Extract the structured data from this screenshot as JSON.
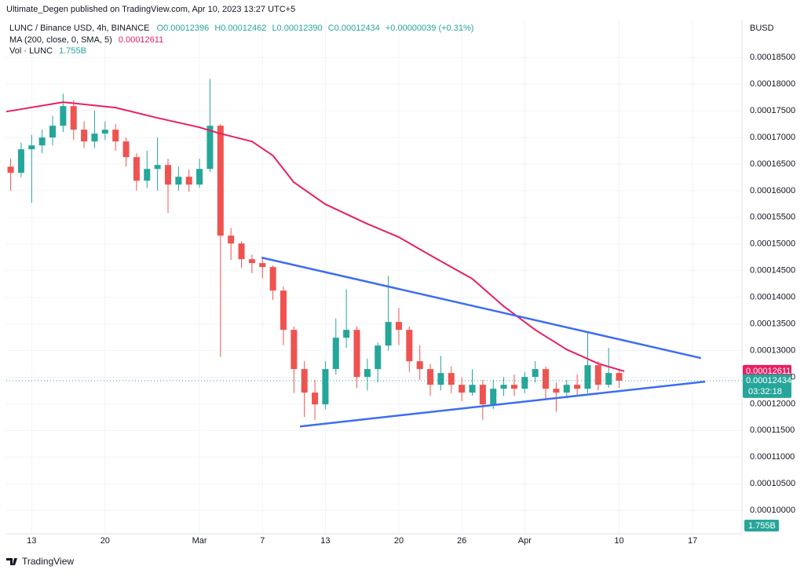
{
  "header": {
    "published": "Ultimate_Degen published on TradingView.com, Apr 10, 2023 13:27 UTC+5",
    "symbol": "LUNC / Binance USD, 4h, BINANCE",
    "o": "O0.00012396",
    "h": "H0.00012462",
    "l": "L0.00012390",
    "c": "C0.00012434",
    "change": "+0.00000039 (+0.31%)",
    "ma_name": "MA (200, close, 0, SMA, 5)",
    "ma_value": "0.00012611",
    "vol_name": "Vol · LUNC",
    "vol_value": "1.755B",
    "currency": "BUSD",
    "last_label": "0.00012434",
    "countdown": "03:32:18",
    "vol_tag": "1.755B",
    "brand": "TradingView"
  },
  "chart_data": {
    "type": "candlestick",
    "up_color": "#26a69a",
    "down_color": "#ef5350",
    "x": [
      "2023-02-11",
      "2023-02-12",
      "2023-02-13",
      "2023-02-14",
      "2023-02-15",
      "2023-02-16",
      "2023-02-17",
      "2023-02-18",
      "2023-02-19",
      "2023-02-20",
      "2023-02-21",
      "2023-02-22",
      "2023-02-23",
      "2023-02-24",
      "2023-02-25",
      "2023-02-26",
      "2023-02-27",
      "2023-02-28",
      "2023-03-01",
      "2023-03-02",
      "2023-03-03",
      "2023-03-04",
      "2023-03-05",
      "2023-03-06",
      "2023-03-07",
      "2023-03-08",
      "2023-03-09",
      "2023-03-10",
      "2023-03-11",
      "2023-03-12",
      "2023-03-13",
      "2023-03-14",
      "2023-03-15",
      "2023-03-16",
      "2023-03-17",
      "2023-03-18",
      "2023-03-19",
      "2023-03-20",
      "2023-03-21",
      "2023-03-22",
      "2023-03-23",
      "2023-03-24",
      "2023-03-25",
      "2023-03-26",
      "2023-03-27",
      "2023-03-28",
      "2023-03-29",
      "2023-03-30",
      "2023-03-31",
      "2023-04-01",
      "2023-04-02",
      "2023-04-03",
      "2023-04-04",
      "2023-04-05",
      "2023-04-06",
      "2023-04-07",
      "2023-04-08",
      "2023-04-09",
      "2023-04-10"
    ],
    "open": [
      0.0001645,
      0.00016335,
      0.00016777,
      0.0001685,
      0.00016998,
      0.00017219,
      0.00017587,
      0.00017145,
      0.00016924,
      0.00017071,
      0.00017145,
      0.00016924,
      0.00016629,
      0.00016187,
      0.00016408,
      0.00016482,
      0.00016114,
      0.00016261,
      0.00016114,
      0.00016408,
      0.00017219,
      0.00015156,
      0.00015009,
      0.00014714,
      0.00014641,
      0.00014567,
      0.00014125,
      0.00013388,
      0.00012652,
      0.0001221,
      0.00011989,
      0.00012652,
      0.00013241,
      0.00013388,
      0.00012504,
      0.00012652,
      0.00013094,
      0.00013536,
      0.00013388,
      0.00012799,
      0.00012652,
      0.00012357,
      0.00012578,
      0.00012357,
      0.0001221,
      0.00012357,
      0.00011989,
      0.00012283,
      0.00012357,
      0.00012283,
      0.00012504,
      0.00012652,
      0.00012283,
      0.0001221,
      0.00012357,
      0.00012283,
      0.00012725,
      0.00012357,
      0.00012578
    ],
    "high": [
      0.000166,
      0.000169,
      0.0001705,
      0.0001715,
      0.000174,
      0.0001782,
      0.000177,
      0.000173,
      0.000175,
      0.000173,
      0.0001725,
      0.00017,
      0.000167,
      0.0001675,
      0.00017,
      0.000166,
      0.0001645,
      0.000164,
      0.000166,
      0.000181,
      0.0001725,
      0.000153,
      0.0001505,
      0.000148,
      0.0001475,
      0.000146,
      0.000142,
      0.0001345,
      0.000128,
      0.0001245,
      0.000128,
      0.000136,
      0.0001415,
      0.0001345,
      0.0001285,
      0.0001315,
      0.000144,
      0.000138,
      0.0001345,
      0.000131,
      0.0001275,
      0.000129,
      0.000127,
      0.000125,
      0.0001265,
      0.0001245,
      0.0001245,
      0.000125,
      0.0001255,
      0.000126,
      0.000128,
      0.000127,
      0.000124,
      0.0001245,
      0.0001255,
      0.0001335,
      0.000128,
      0.0001305,
      0.0001265
    ],
    "low": [
      0.00016,
      0.0001625,
      0.0001577,
      0.000167,
      0.0001685,
      0.000171,
      0.0001695,
      0.000168,
      0.000168,
      0.0001695,
      0.0001675,
      0.0001645,
      0.00016,
      0.0001605,
      0.00016,
      0.0001558,
      0.00016,
      0.0001598,
      0.0001605,
      0.0001635,
      0.0001288,
      0.000147,
      0.0001455,
      0.0001445,
      0.0001435,
      0.0001395,
      0.000131,
      0.000122,
      0.0001175,
      0.000117,
      0.000119,
      0.0001255,
      0.0001305,
      0.000123,
      0.0001225,
      0.000124,
      0.00013,
      0.000131,
      0.000126,
      0.0001245,
      0.0001215,
      0.0001225,
      0.000122,
      0.0001205,
      0.0001215,
      0.000117,
      0.000119,
      0.0001215,
      0.0001215,
      0.000122,
      0.000124,
      0.000121,
      0.0001185,
      0.000121,
      0.0001215,
      0.000122,
      0.0001225,
      0.000123,
      0.000123
    ],
    "close": [
      0.00016335,
      0.00016777,
      0.0001685,
      0.00016998,
      0.00017219,
      0.00017587,
      0.00017145,
      0.00016924,
      0.00017071,
      0.00017145,
      0.00016924,
      0.00016629,
      0.00016187,
      0.00016408,
      0.00016482,
      0.00016114,
      0.00016261,
      0.00016114,
      0.00016408,
      0.00017219,
      0.00015156,
      0.00015009,
      0.00014714,
      0.00014641,
      0.00014567,
      0.00014125,
      0.00013388,
      0.00012652,
      0.0001221,
      0.00011989,
      0.00012652,
      0.00013241,
      0.00013388,
      0.00012504,
      0.00012652,
      0.00013094,
      0.00013536,
      0.00013388,
      0.00012799,
      0.00012652,
      0.00012357,
      0.00012578,
      0.00012357,
      0.0001221,
      0.00012357,
      0.00011989,
      0.00012283,
      0.00012357,
      0.00012283,
      0.00012504,
      0.00012652,
      0.00012283,
      0.0001221,
      0.00012357,
      0.00012283,
      0.00012725,
      0.00012357,
      0.00012578,
      0.00012434
    ],
    "ma": {
      "color": "#e91e63",
      "x": [
        "2023-02-10T14:00",
        "2023-02-16",
        "2023-02-21",
        "2023-02-25",
        "2023-03-01",
        "2023-03-03",
        "2023-03-06",
        "2023-03-08",
        "2023-03-10",
        "2023-03-13",
        "2023-03-17",
        "2023-03-20",
        "2023-03-23",
        "2023-03-27",
        "2023-03-30",
        "2023-04-02",
        "2023-04-05",
        "2023-04-08",
        "2023-04-10T12:00"
      ],
      "values": [
        0.00017484,
        0.00017661,
        0.00017558,
        0.00017366,
        0.00017189,
        0.00017071,
        0.00016924,
        0.00016659,
        0.00016158,
        0.00015745,
        0.00015377,
        0.00015127,
        0.00014788,
        0.00014346,
        0.0001383,
        0.00013388,
        0.0001302,
        0.00012755,
        0.00012611
      ]
    },
    "trendlines": [
      {
        "color": "#3d6ef0",
        "x": [
          "2023-03-06T22:00",
          "2023-04-17T19:00"
        ],
        "values": [
          0.00014744,
          0.00012858
        ]
      },
      {
        "color": "#3d6ef0",
        "x": [
          "2023-03-10T14:00",
          "2023-04-18T05:00"
        ],
        "values": [
          0.00011576,
          0.00012416
        ]
      }
    ],
    "xlim": [
      "2023-02-10T14:00",
      "2023-04-21T17:00"
    ],
    "xticks": [
      {
        "value": "2023-02-13",
        "label": "13"
      },
      {
        "value": "2023-02-20",
        "label": "20"
      },
      {
        "value": "2023-03-01",
        "label": "Mar"
      },
      {
        "value": "2023-03-07",
        "label": "7"
      },
      {
        "value": "2023-03-13",
        "label": "13"
      },
      {
        "value": "2023-03-20",
        "label": "20"
      },
      {
        "value": "2023-03-26",
        "label": "26"
      },
      {
        "value": "2023-04-01",
        "label": "Apr"
      },
      {
        "value": "2023-04-10",
        "label": "10"
      },
      {
        "value": "2023-04-17",
        "label": "17"
      }
    ],
    "ylim": [
      9.56e-05,
      0.0001921
    ],
    "yticks": [
      {
        "value": 0.0001,
        "label": "0.00010000"
      },
      {
        "value": 0.000105,
        "label": "0.00010500"
      },
      {
        "value": 0.00011,
        "label": "0.00011000"
      },
      {
        "value": 0.000115,
        "label": "0.00011500"
      },
      {
        "value": 0.00012,
        "label": "0.00012000"
      },
      {
        "value": 0.000125,
        "label": "0.00012500"
      },
      {
        "value": 0.00013,
        "label": "0.00013000"
      },
      {
        "value": 0.000135,
        "label": "0.00013500"
      },
      {
        "value": 0.00014,
        "label": "0.00014000"
      },
      {
        "value": 0.000145,
        "label": "0.00014500"
      },
      {
        "value": 0.00015,
        "label": "0.00015000"
      },
      {
        "value": 0.000155,
        "label": "0.00015500"
      },
      {
        "value": 0.00016,
        "label": "0.00016000"
      },
      {
        "value": 0.000165,
        "label": "0.00016500"
      },
      {
        "value": 0.00017,
        "label": "0.00017000"
      },
      {
        "value": 0.000175,
        "label": "0.00017500"
      },
      {
        "value": 0.00018,
        "label": "0.00018000"
      },
      {
        "value": 0.000185,
        "label": "0.00018500"
      }
    ],
    "grid": true
  }
}
